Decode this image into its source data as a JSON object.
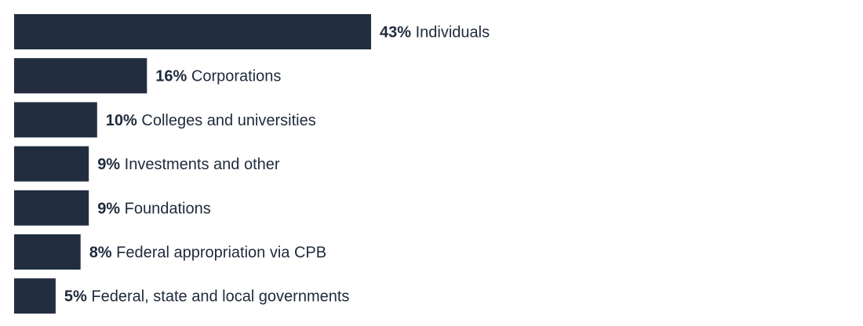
{
  "chart_data": {
    "type": "bar",
    "orientation": "horizontal",
    "categories": [
      "Individuals",
      "Corporations",
      "Colleges and universities",
      "Investments and other",
      "Foundations",
      "Federal appropriation via CPB",
      "Federal, state and local governments"
    ],
    "values": [
      43,
      16,
      10,
      9,
      9,
      8,
      5
    ],
    "value_labels": [
      "43%",
      "16%",
      "10%",
      "9%",
      "9%",
      "8%",
      "5%"
    ],
    "unit": "%",
    "bar_color": "#232d40",
    "title": "",
    "xlabel": "",
    "ylabel": "",
    "grid": false,
    "legend": "none"
  }
}
